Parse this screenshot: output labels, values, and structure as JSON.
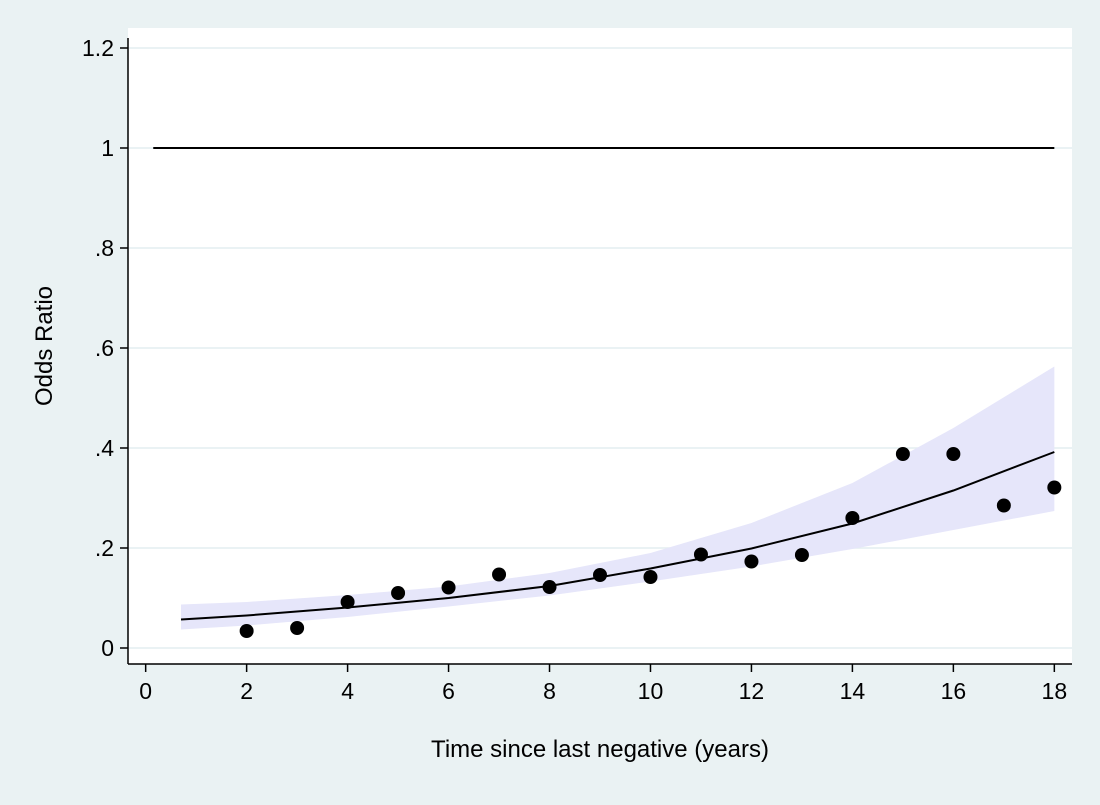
{
  "chart_data": {
    "type": "scatter",
    "title": "",
    "xlabel": "Time since last negative (years)",
    "ylabel": "Odds Ratio",
    "xlim": [
      -0.35,
      18.35
    ],
    "ylim": [
      -0.032,
      1.24
    ],
    "x_ticks": [
      0,
      2,
      4,
      6,
      8,
      10,
      12,
      14,
      16,
      18
    ],
    "x_tick_labels": [
      "0",
      "2",
      "4",
      "6",
      "8",
      "10",
      "12",
      "14",
      "16",
      "18"
    ],
    "y_ticks": [
      0,
      0.2,
      0.4,
      0.6,
      0.8,
      1,
      1.2
    ],
    "y_tick_labels": [
      "0",
      ".2",
      ".4",
      ".6",
      ".8",
      "1",
      "1.2"
    ],
    "grid": "horizontal",
    "legend": "none",
    "reference_line": {
      "y": 1,
      "x_start": 0.15,
      "x_end": 18
    },
    "points": {
      "x": [
        2,
        3,
        4,
        5,
        6,
        7,
        8,
        9,
        10,
        11,
        12,
        13,
        14,
        15,
        16,
        17,
        18
      ],
      "y": [
        0.034,
        0.04,
        0.092,
        0.11,
        0.121,
        0.147,
        0.122,
        0.146,
        0.142,
        0.187,
        0.173,
        0.186,
        0.26,
        0.388,
        0.388,
        0.285,
        0.321
      ]
    },
    "fit": {
      "x": [
        0.7,
        2,
        4,
        6,
        8,
        10,
        12,
        14,
        16,
        18
      ],
      "y": [
        0.057,
        0.065,
        0.081,
        0.1,
        0.124,
        0.159,
        0.199,
        0.249,
        0.315,
        0.392
      ]
    },
    "ci_band": {
      "x": [
        0.7,
        2,
        4,
        6,
        8,
        10,
        12,
        14,
        16,
        18
      ],
      "lower": [
        0.037,
        0.045,
        0.062,
        0.083,
        0.105,
        0.133,
        0.163,
        0.198,
        0.236,
        0.274
      ],
      "upper": [
        0.087,
        0.092,
        0.106,
        0.123,
        0.15,
        0.19,
        0.25,
        0.33,
        0.44,
        0.563
      ]
    },
    "colors": {
      "background": "#eaf2f3",
      "plot_area": "#ffffff",
      "gridline": "#e4eef0",
      "band": "#e6e6fa",
      "line": "#000000",
      "marker": "#000000"
    }
  }
}
